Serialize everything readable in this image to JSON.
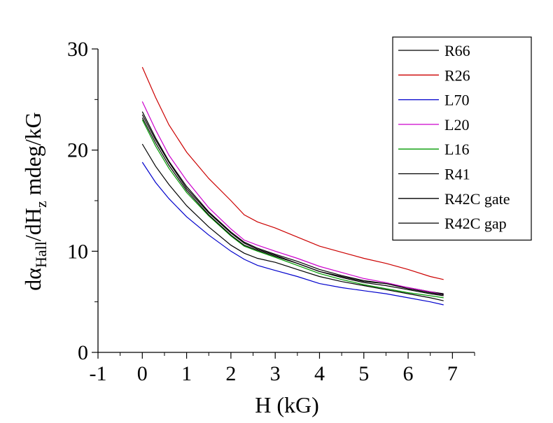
{
  "chart_data": {
    "type": "line",
    "xlabel": "H (kG)",
    "ylabel": {
      "d1": "dα",
      "sub1": "Hall",
      "d2": "/dH",
      "sub2": "z",
      "rest": " mdeg/kG"
    },
    "xlim": [
      -1,
      7.5
    ],
    "ylim": [
      0,
      30
    ],
    "xticks": [
      "-1",
      "0",
      "1",
      "2",
      "3",
      "4",
      "5",
      "6",
      "7"
    ],
    "yticks": [
      "0",
      "10",
      "20",
      "30"
    ],
    "grid": false,
    "legend_position": "top-right",
    "series": [
      {
        "name": "R66",
        "color": "#000000",
        "x": [
          0,
          0.3,
          0.6,
          1,
          1.5,
          2,
          2.3,
          2.6,
          3,
          3.5,
          4,
          4.5,
          5,
          5.5,
          6,
          6.5,
          6.8
        ],
        "y": [
          23.5,
          21.0,
          18.8,
          16.2,
          13.8,
          11.8,
          10.8,
          10.2,
          9.6,
          8.8,
          8.0,
          7.5,
          7.0,
          6.8,
          6.4,
          6.0,
          5.8
        ]
      },
      {
        "name": "R26",
        "color": "#cc0000",
        "x": [
          0,
          0.3,
          0.6,
          1,
          1.5,
          2,
          2.3,
          2.6,
          3,
          3.5,
          4,
          4.5,
          5,
          5.5,
          6,
          6.5,
          6.8
        ],
        "y": [
          28.2,
          25.2,
          22.5,
          19.8,
          17.2,
          15.0,
          13.6,
          12.9,
          12.3,
          11.4,
          10.5,
          9.9,
          9.3,
          8.8,
          8.2,
          7.5,
          7.2
        ]
      },
      {
        "name": "L70",
        "color": "#0000cc",
        "x": [
          0,
          0.3,
          0.6,
          1,
          1.5,
          2,
          2.3,
          2.6,
          3,
          3.5,
          4,
          4.5,
          5,
          5.5,
          6,
          6.5,
          6.8
        ],
        "y": [
          18.8,
          16.8,
          15.2,
          13.4,
          11.6,
          10.0,
          9.2,
          8.6,
          8.1,
          7.5,
          6.8,
          6.4,
          6.1,
          5.8,
          5.4,
          5.0,
          4.7
        ]
      },
      {
        "name": "L20",
        "color": "#cc00cc",
        "x": [
          0,
          0.3,
          0.6,
          1,
          1.5,
          2,
          2.3,
          2.6,
          3,
          3.5,
          4,
          4.5,
          5,
          5.5,
          6,
          6.5,
          6.8
        ],
        "y": [
          24.8,
          22.0,
          19.5,
          17.0,
          14.3,
          12.2,
          11.1,
          10.6,
          10.0,
          9.3,
          8.5,
          7.9,
          7.3,
          6.9,
          6.4,
          6.0,
          5.7
        ]
      },
      {
        "name": "L16",
        "color": "#009900",
        "x": [
          0,
          0.3,
          0.6,
          1,
          1.5,
          2,
          2.3,
          2.6,
          3,
          3.5,
          4,
          4.5,
          5,
          5.5,
          6,
          6.5,
          6.8
        ],
        "y": [
          23.0,
          20.4,
          18.2,
          15.8,
          13.5,
          11.5,
          10.5,
          10.0,
          9.4,
          8.6,
          7.8,
          7.2,
          6.7,
          6.3,
          5.9,
          5.6,
          5.4
        ]
      },
      {
        "name": "R41",
        "color": "#000000",
        "x": [
          0,
          0.3,
          0.6,
          1,
          1.5,
          2,
          2.3,
          2.6,
          3,
          3.5,
          4,
          4.5,
          5,
          5.5,
          6,
          6.5,
          6.8
        ],
        "y": [
          23.8,
          21.2,
          18.9,
          16.4,
          13.9,
          11.9,
          10.9,
          10.3,
          9.7,
          9.0,
          8.2,
          7.6,
          7.1,
          6.8,
          6.3,
          5.9,
          5.7
        ]
      },
      {
        "name": "R42C gate",
        "color": "#000000",
        "x": [
          0,
          0.3,
          0.6,
          1,
          1.5,
          2,
          2.3,
          2.6,
          3,
          3.5,
          4,
          4.5,
          5,
          5.5,
          6,
          6.5,
          6.8
        ],
        "y": [
          20.6,
          18.4,
          16.6,
          14.5,
          12.4,
          10.6,
          9.8,
          9.3,
          8.9,
          8.2,
          7.5,
          7.0,
          6.6,
          6.2,
          5.8,
          5.4,
          5.1
        ]
      },
      {
        "name": "R42C gap",
        "color": "#000000",
        "x": [
          0,
          0.3,
          0.6,
          1,
          1.5,
          2,
          2.3,
          2.6,
          3,
          3.5,
          4,
          4.5,
          5,
          5.5,
          6,
          6.5,
          6.8
        ],
        "y": [
          23.2,
          20.7,
          18.5,
          16.0,
          13.6,
          11.6,
          10.6,
          10.1,
          9.5,
          8.8,
          8.0,
          7.4,
          6.9,
          6.6,
          6.2,
          5.8,
          5.6
        ]
      }
    ]
  }
}
